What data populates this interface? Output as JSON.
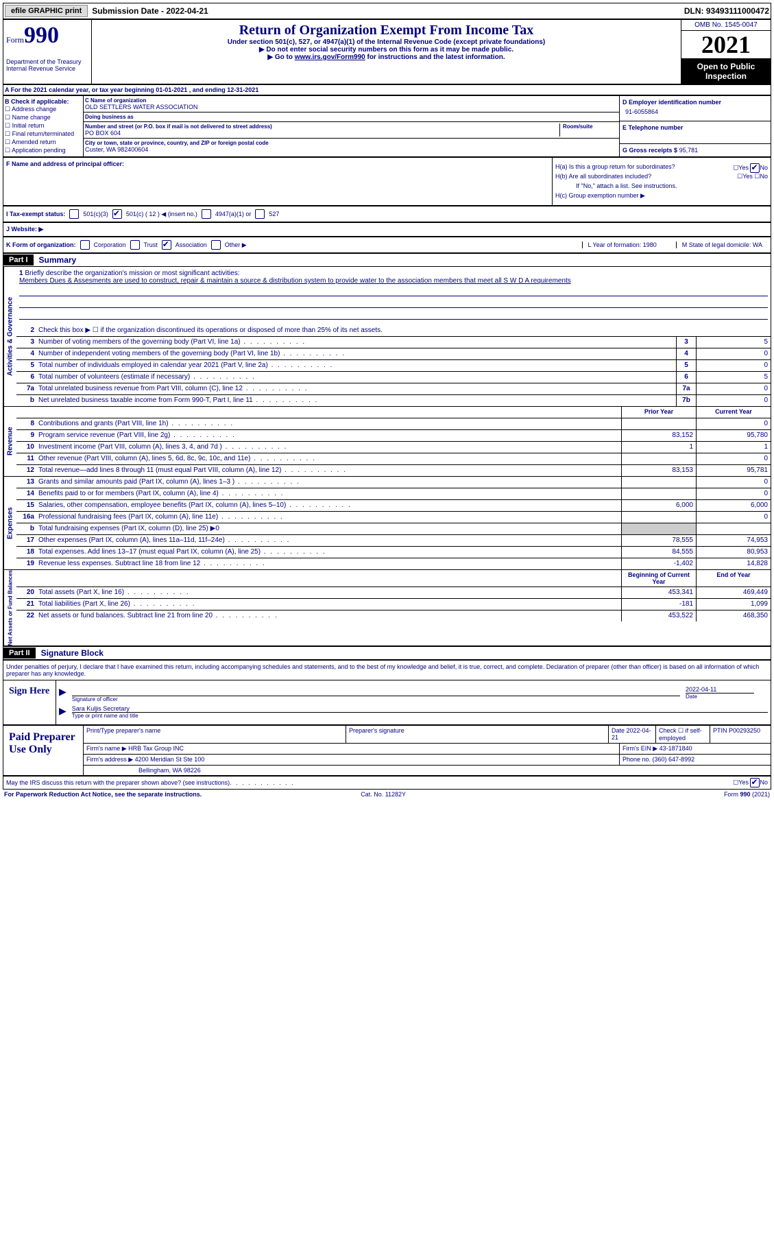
{
  "topbar": {
    "btn1": "efile GRAPHIC print",
    "sub": "Submission Date - 2022-04-21",
    "dln": "DLN: 93493111000472"
  },
  "header": {
    "form": "Form",
    "num": "990",
    "dept": "Department of the Treasury Internal Revenue Service",
    "title": "Return of Organization Exempt From Income Tax",
    "sub1": "Under section 501(c), 527, or 4947(a)(1) of the Internal Revenue Code (except private foundations)",
    "sub2": "▶ Do not enter social security numbers on this form as it may be made public.",
    "sub3": "▶ Go to www.irs.gov/Form990 for instructions and the latest information.",
    "link": "www.irs.gov/Form990",
    "omb": "OMB No. 1545-0047",
    "year": "2021",
    "inspect": "Open to Public Inspection"
  },
  "yearfor": "A For the 2021 calendar year, or tax year beginning 01-01-2021   , and ending 12-31-2021",
  "bcheck": {
    "label": "B Check if applicable:",
    "opts": [
      "Address change",
      "Name change",
      "Initial return",
      "Final return/terminated",
      "Amended return",
      "Application pending"
    ]
  },
  "cblock": {
    "name_lbl": "C Name of organization",
    "name": "OLD SETTLERS WATER ASSOCIATION",
    "dba_lbl": "Doing business as",
    "dba": "",
    "street_lbl": "Number and street (or P.O. box if mail is not delivered to street address)",
    "street": "PO BOX 604",
    "room_lbl": "Room/suite",
    "city_lbl": "City or town, state or province, country, and ZIP or foreign postal code",
    "city": "Custer, WA   982400604"
  },
  "dblock": {
    "ein_lbl": "D Employer identification number",
    "ein": "91-6055864",
    "tel_lbl": "E Telephone number",
    "tel": "",
    "gross_lbl": "G Gross receipts $",
    "gross": "95,781"
  },
  "fblock": {
    "f_lbl": "F Name and address of principal officer:",
    "ha": "H(a)  Is this a group return for subordinates?",
    "hb": "H(b)  Are all subordinates included?",
    "hb2": "If \"No,\" attach a list. See instructions.",
    "hc": "H(c)  Group exemption number ▶",
    "ha_no": true
  },
  "taxexempt": {
    "i_lbl": "I   Tax-exempt status:",
    "opts": [
      "501(c)(3)",
      "501(c) ( 12 ) ◀ (insert no.)",
      "4947(a)(1) or",
      "527"
    ],
    "checked": 1
  },
  "website": {
    "j_lbl": "J   Website: ▶"
  },
  "korg": {
    "k_lbl": "K Form of organization:",
    "opts": [
      "Corporation",
      "Trust",
      "Association",
      "Other ▶"
    ],
    "checked": 2,
    "l": "L Year of formation: 1980",
    "m": "M State of legal domicile: WA"
  },
  "part1": {
    "tag": "Part I",
    "label": "Summary"
  },
  "summary": {
    "mission_lbl": "Briefly describe the organization's mission or most significant activities:",
    "mission": "Members Dues & Assesments are used to construct, repair & maintain a source & distribution system to provide water to the association members that meet all S W D A requirements",
    "line2": "Check this box ▶ ☐ if the organization discontinued its operations or disposed of more than 25% of its net assets.",
    "rows_gov": [
      {
        "n": "3",
        "d": "Number of voting members of the governing body (Part VI, line 1a)",
        "b": "3",
        "v": "5"
      },
      {
        "n": "4",
        "d": "Number of independent voting members of the governing body (Part VI, line 1b)",
        "b": "4",
        "v": "0"
      },
      {
        "n": "5",
        "d": "Total number of individuals employed in calendar year 2021 (Part V, line 2a)",
        "b": "5",
        "v": "0"
      },
      {
        "n": "6",
        "d": "Total number of volunteers (estimate if necessary)",
        "b": "6",
        "v": "5"
      },
      {
        "n": "7a",
        "d": "Total unrelated business revenue from Part VIII, column (C), line 12",
        "b": "7a",
        "v": "0"
      },
      {
        "n": "b",
        "d": "Net unrelated business taxable income from Form 990-T, Part I, line 11",
        "b": "7b",
        "v": "0"
      }
    ],
    "col_headers": [
      "Prior Year",
      "Current Year"
    ],
    "rows_rev": [
      {
        "n": "8",
        "d": "Contributions and grants (Part VIII, line 1h)",
        "p": "",
        "c": "0"
      },
      {
        "n": "9",
        "d": "Program service revenue (Part VIII, line 2g)",
        "p": "83,152",
        "c": "95,780"
      },
      {
        "n": "10",
        "d": "Investment income (Part VIII, column (A), lines 3, 4, and 7d )",
        "p": "1",
        "c": "1"
      },
      {
        "n": "11",
        "d": "Other revenue (Part VIII, column (A), lines 5, 6d, 8c, 9c, 10c, and 11e)",
        "p": "",
        "c": "0"
      },
      {
        "n": "12",
        "d": "Total revenue—add lines 8 through 11 (must equal Part VIII, column (A), line 12)",
        "p": "83,153",
        "c": "95,781"
      }
    ],
    "rows_exp": [
      {
        "n": "13",
        "d": "Grants and similar amounts paid (Part IX, column (A), lines 1–3 )",
        "p": "",
        "c": "0"
      },
      {
        "n": "14",
        "d": "Benefits paid to or for members (Part IX, column (A), line 4)",
        "p": "",
        "c": "0"
      },
      {
        "n": "15",
        "d": "Salaries, other compensation, employee benefits (Part IX, column (A), lines 5–10)",
        "p": "6,000",
        "c": "6,000"
      },
      {
        "n": "16a",
        "d": "Professional fundraising fees (Part IX, column (A), line 11e)",
        "p": "",
        "c": "0"
      },
      {
        "n": "b",
        "d": "Total fundraising expenses (Part IX, column (D), line 25) ▶0",
        "p": "shaded",
        "c": "shaded"
      },
      {
        "n": "17",
        "d": "Other expenses (Part IX, column (A), lines 11a–11d, 11f–24e)",
        "p": "78,555",
        "c": "74,953"
      },
      {
        "n": "18",
        "d": "Total expenses. Add lines 13–17 (must equal Part IX, column (A), line 25)",
        "p": "84,555",
        "c": "80,953"
      },
      {
        "n": "19",
        "d": "Revenue less expenses. Subtract line 18 from line 12",
        "p": "-1,402",
        "c": "14,828"
      }
    ],
    "net_headers": [
      "Beginning of Current Year",
      "End of Year"
    ],
    "rows_net": [
      {
        "n": "20",
        "d": "Total assets (Part X, line 16)",
        "p": "453,341",
        "c": "469,449"
      },
      {
        "n": "21",
        "d": "Total liabilities (Part X, line 26)",
        "p": "-181",
        "c": "1,099"
      },
      {
        "n": "22",
        "d": "Net assets or fund balances. Subtract line 21 from line 20",
        "p": "453,522",
        "c": "468,350"
      }
    ],
    "vtab_gov": "Activities & Governance",
    "vtab_rev": "Revenue",
    "vtab_exp": "Expenses",
    "vtab_net": "Net Assets or Fund Balances"
  },
  "part2": {
    "tag": "Part II",
    "label": "Signature Block",
    "prelude": "Under penalties of perjury, I declare that I have examined this return, including accompanying schedules and statements, and to the best of my knowledge and belief, it is true, correct, and complete. Declaration of preparer (other than officer) is based on all information of which preparer has any knowledge.",
    "sign_lbl": "Sign Here",
    "sig1_lbl": "Signature of officer",
    "date1": "2022-04-11",
    "date1_lbl": "Date",
    "name": "Sara Kuljis  Secretary",
    "name_lbl": "Type or print name and title"
  },
  "preparer": {
    "lbl": "Paid Preparer Use Only",
    "r1": {
      "c1": "Print/Type preparer's name",
      "c2": "Preparer's signature",
      "c3": "Date 2022-04-21",
      "c4": "Check ☐ if self-employed",
      "c5": "PTIN P00293250"
    },
    "r2": {
      "c1": "Firm's name      ▶ HRB Tax Group INC",
      "c2": "Firm's EIN ▶ 43-1871840"
    },
    "r3": {
      "c1": "Firm's address ▶ 4200 Meridian St Ste 100",
      "c2": "Phone no. (360) 647-8992"
    },
    "r4": "Bellingham, WA   98226"
  },
  "discuss": {
    "q": "May the IRS discuss this return with the preparer shown above? (see instructions)",
    "no": true
  },
  "footer": {
    "left": "For Paperwork Reduction Act Notice, see the separate instructions.",
    "mid": "Cat. No. 11282Y",
    "right": "Form 990 (2021)"
  }
}
